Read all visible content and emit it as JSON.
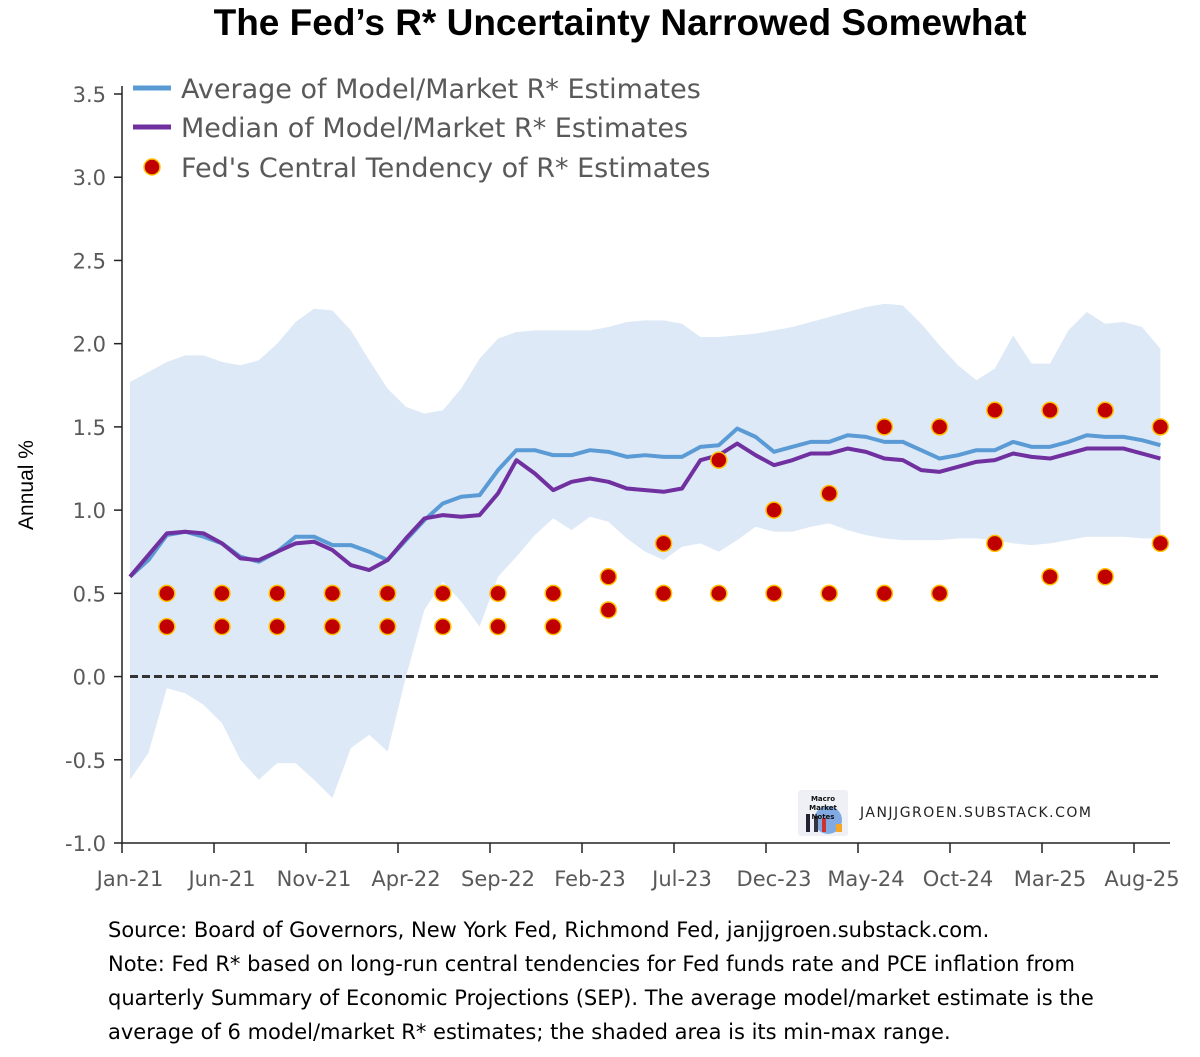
{
  "chart_data": {
    "type": "line",
    "title": "The Fed’s R* Uncertainty Narrowed Somewhat",
    "xlabel": "",
    "ylabel": "Annual %",
    "ylim": [
      -1.0,
      3.5
    ],
    "yticks": [
      "-1.0",
      "-0.5",
      "0.0",
      "0.5",
      "1.0",
      "1.5",
      "2.0",
      "2.5",
      "3.0",
      "3.5"
    ],
    "xtick_labels": [
      "Jan-21",
      "Jun-21",
      "Nov-21",
      "Apr-22",
      "Sep-22",
      "Feb-23",
      "Jul-23",
      "Dec-23",
      "May-24",
      "Oct-24",
      "Mar-25",
      "Aug-25"
    ],
    "x_start": "Jan-21",
    "x_end": "Sep-25",
    "legend_position": "top-left",
    "series": [
      {
        "name": "Average of Model/Market R* Estimates",
        "color": "#5b9bd5",
        "type": "line",
        "values": [
          0.6,
          0.7,
          0.85,
          0.87,
          0.84,
          0.8,
          0.72,
          0.69,
          0.75,
          0.84,
          0.84,
          0.79,
          0.79,
          0.75,
          0.7,
          0.82,
          0.94,
          1.04,
          1.08,
          1.09,
          1.24,
          1.36,
          1.36,
          1.33,
          1.33,
          1.36,
          1.35,
          1.32,
          1.33,
          1.32,
          1.32,
          1.38,
          1.39,
          1.49,
          1.44,
          1.35,
          1.38,
          1.41,
          1.41,
          1.45,
          1.44,
          1.41,
          1.41,
          1.36,
          1.31,
          1.33,
          1.36,
          1.36,
          1.41,
          1.38,
          1.38,
          1.41,
          1.45,
          1.44,
          1.44,
          1.42,
          1.39
        ]
      },
      {
        "name": "Median of Model/Market R* Estimates",
        "color": "#7030a0",
        "type": "line",
        "values": [
          0.6,
          0.73,
          0.86,
          0.87,
          0.86,
          0.8,
          0.71,
          0.7,
          0.75,
          0.8,
          0.81,
          0.76,
          0.67,
          0.64,
          0.7,
          0.83,
          0.95,
          0.97,
          0.96,
          0.97,
          1.1,
          1.3,
          1.22,
          1.12,
          1.17,
          1.19,
          1.17,
          1.13,
          1.12,
          1.11,
          1.13,
          1.3,
          1.33,
          1.4,
          1.33,
          1.27,
          1.3,
          1.34,
          1.34,
          1.37,
          1.35,
          1.31,
          1.3,
          1.24,
          1.23,
          1.26,
          1.29,
          1.3,
          1.34,
          1.32,
          1.31,
          1.34,
          1.37,
          1.37,
          1.37,
          1.34,
          1.31
        ]
      },
      {
        "name": "Fed's Central Tendency of R* Estimates",
        "color": "#c00000",
        "edge": "#ffc000",
        "type": "scatter",
        "month_index": [
          2,
          5,
          8,
          11,
          14,
          17,
          20,
          23,
          26,
          29,
          32,
          35,
          38,
          41,
          44,
          47,
          50,
          53,
          56
        ],
        "high": [
          0.5,
          0.5,
          0.5,
          0.5,
          0.5,
          0.5,
          0.5,
          0.5,
          0.6,
          0.8,
          1.3,
          1.0,
          1.1,
          1.5,
          1.5,
          1.6,
          1.6,
          1.6,
          1.5
        ],
        "low": [
          0.3,
          0.3,
          0.3,
          0.3,
          0.3,
          0.3,
          0.3,
          0.3,
          0.4,
          0.5,
          0.5,
          0.5,
          0.5,
          0.5,
          0.5,
          0.8,
          0.6,
          0.6,
          0.8
        ]
      }
    ],
    "band": {
      "name": "min-max range",
      "color": "#dde9f6",
      "max": [
        1.77,
        1.83,
        1.89,
        1.93,
        1.93,
        1.89,
        1.87,
        1.9,
        2.0,
        2.13,
        2.21,
        2.2,
        2.08,
        1.9,
        1.73,
        1.62,
        1.58,
        1.6,
        1.73,
        1.91,
        2.03,
        2.07,
        2.08,
        2.08,
        2.08,
        2.08,
        2.1,
        2.13,
        2.14,
        2.14,
        2.12,
        2.04,
        2.04,
        2.05,
        2.06,
        2.08,
        2.1,
        2.13,
        2.16,
        2.19,
        2.22,
        2.24,
        2.23,
        2.12,
        1.99,
        1.87,
        1.78,
        1.85,
        2.05,
        1.88,
        1.88,
        2.08,
        2.19,
        2.12,
        2.13,
        2.1,
        1.97
      ],
      "min": [
        -0.62,
        -0.46,
        -0.07,
        -0.1,
        -0.17,
        -0.28,
        -0.5,
        -0.62,
        -0.52,
        -0.52,
        -0.62,
        -0.73,
        -0.43,
        -0.35,
        -0.45,
        0.0,
        0.4,
        0.57,
        0.45,
        0.3,
        0.6,
        0.72,
        0.85,
        0.95,
        0.88,
        0.96,
        0.93,
        0.83,
        0.75,
        0.7,
        0.78,
        0.8,
        0.75,
        0.82,
        0.9,
        0.87,
        0.87,
        0.9,
        0.92,
        0.88,
        0.85,
        0.83,
        0.82,
        0.82,
        0.82,
        0.83,
        0.83,
        0.82,
        0.8,
        0.79,
        0.8,
        0.82,
        0.84,
        0.84,
        0.84,
        0.83,
        0.83
      ]
    },
    "zero_line": 0.0
  },
  "watermark": "JANJJGROEN.SUBSTACK.COM",
  "logo_text": "Macro Market Notes",
  "footer": [
    "Source: Board of Governors, New York Fed, Richmond Fed, janjjgroen.substack.com.",
    "Note: Fed R* based on long-run central tendencies for Fed funds rate and PCE inflation from",
    "quarterly Summary of Economic Projections (SEP). The average model/market estimate is the",
    "average of 6 model/market R* estimates; the shaded area is its  min-max range."
  ]
}
